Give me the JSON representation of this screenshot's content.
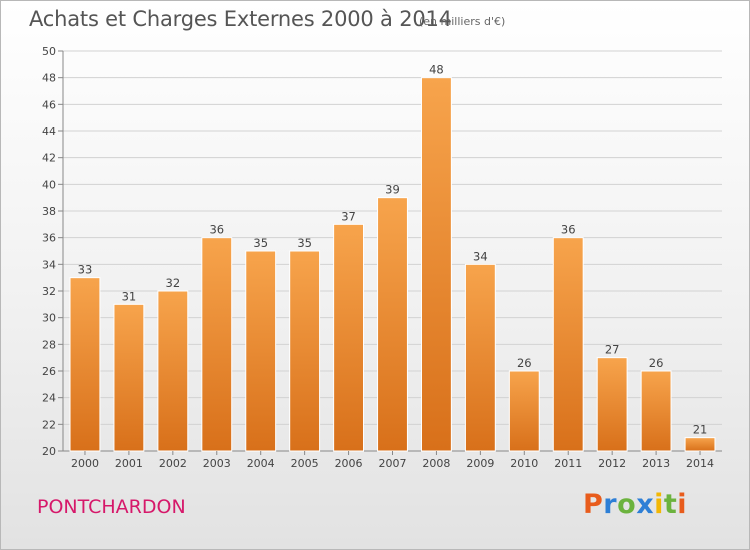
{
  "chart_data": {
    "type": "bar",
    "title": "Achats et Charges Externes 2000 à 2014",
    "subtitle": "(en milliers d'€)",
    "xlabel": "",
    "ylabel": "",
    "categories": [
      "2000",
      "2001",
      "2002",
      "2003",
      "2004",
      "2005",
      "2006",
      "2007",
      "2008",
      "2009",
      "2010",
      "2011",
      "2012",
      "2013",
      "2014"
    ],
    "values": [
      33,
      31,
      32,
      36,
      35,
      35,
      37,
      39,
      48,
      34,
      26,
      36,
      27,
      26,
      21
    ],
    "ylim": [
      20,
      50
    ],
    "yticks": [
      20,
      22,
      24,
      26,
      28,
      30,
      32,
      34,
      36,
      38,
      40,
      42,
      44,
      46,
      48,
      50
    ],
    "grid": true,
    "legend": "none",
    "bar_color_top": "#f7a44c",
    "bar_color_bottom": "#d8701a"
  },
  "footer": {
    "commune": "PONTCHARDON",
    "logo_letters": [
      "P",
      "r",
      "o",
      "x",
      "i",
      "t",
      "i"
    ],
    "logo_colors": [
      "#e85c1c",
      "#2e7fd6",
      "#6cb33e",
      "#2e7fd6",
      "#f2b705",
      "#6cb33e",
      "#e85c1c"
    ]
  },
  "colors": {
    "commune": "#d6186a",
    "text": "#555555"
  }
}
